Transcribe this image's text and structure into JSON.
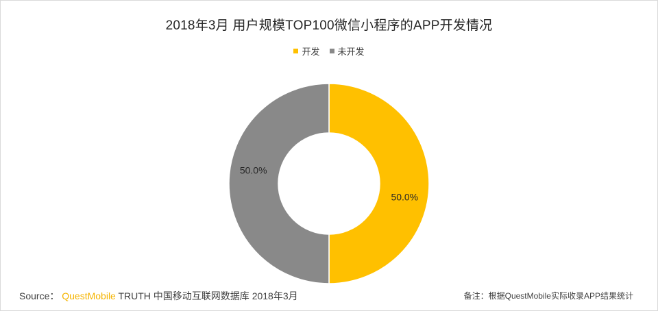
{
  "chart_data": {
    "type": "pie",
    "title": "2018年3月 用户规模TOP100微信小程序的APP开发情况",
    "donut": true,
    "legend_position": "top-center",
    "slices": [
      {
        "label": "开发",
        "value": 50.0,
        "display": "50.0%",
        "color": "#ffc000"
      },
      {
        "label": "未开发",
        "value": 50.0,
        "display": "50.0%",
        "color": "#898989"
      }
    ]
  },
  "footer": {
    "source_prefix": "Source：",
    "source_brand": "QuestMobile",
    "source_rest": "TRUTH 中国移动互联网数据库 2018年3月",
    "note": "备注：根据QuestMobile实际收录APP结果统计"
  },
  "colors": {
    "brand": "#f5b400",
    "divider": "#ffffff"
  }
}
